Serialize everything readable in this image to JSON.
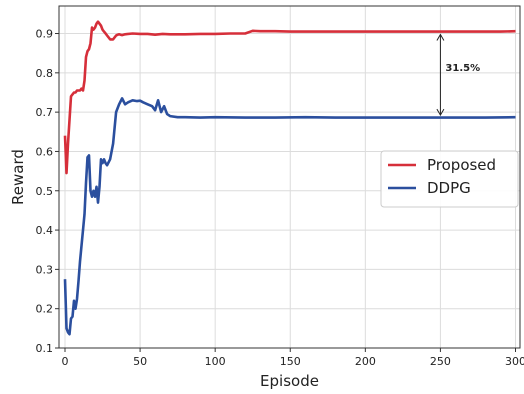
{
  "chart_data": {
    "type": "line",
    "title": "",
    "xlabel": "Episode",
    "ylabel": "Reward",
    "xlim": [
      -4,
      303
    ],
    "ylim": [
      0.1,
      0.97
    ],
    "xticks": [
      0,
      50,
      100,
      150,
      200,
      250,
      300
    ],
    "yticks": [
      0.1,
      0.2,
      0.3,
      0.4,
      0.5,
      0.6,
      0.7,
      0.8,
      0.9
    ],
    "grid": true,
    "legend_position": "center-right",
    "series": [
      {
        "name": "Proposed",
        "color": "#d62f3a",
        "x": [
          0,
          1,
          2,
          3,
          4,
          5,
          6,
          7,
          8,
          9,
          10,
          11,
          12,
          13,
          14,
          15,
          16,
          17,
          18,
          19,
          20,
          21,
          22,
          23,
          24,
          25,
          26,
          27,
          28,
          29,
          30,
          31,
          32,
          33,
          34,
          35,
          36,
          37,
          38,
          40,
          45,
          50,
          55,
          60,
          65,
          70,
          80,
          90,
          100,
          110,
          120,
          125,
          130,
          140,
          150,
          160,
          170,
          180,
          190,
          200,
          210,
          220,
          230,
          240,
          250,
          260,
          270,
          280,
          290,
          300
        ],
        "y": [
          0.64,
          0.545,
          0.62,
          0.68,
          0.74,
          0.745,
          0.75,
          0.75,
          0.755,
          0.755,
          0.755,
          0.76,
          0.755,
          0.78,
          0.84,
          0.855,
          0.86,
          0.875,
          0.915,
          0.91,
          0.915,
          0.925,
          0.93,
          0.925,
          0.92,
          0.91,
          0.905,
          0.9,
          0.895,
          0.89,
          0.885,
          0.885,
          0.885,
          0.89,
          0.895,
          0.897,
          0.898,
          0.897,
          0.896,
          0.898,
          0.9,
          0.899,
          0.899,
          0.897,
          0.899,
          0.898,
          0.898,
          0.899,
          0.899,
          0.9,
          0.9,
          0.907,
          0.906,
          0.906,
          0.905,
          0.905,
          0.905,
          0.905,
          0.905,
          0.905,
          0.905,
          0.905,
          0.905,
          0.905,
          0.905,
          0.905,
          0.905,
          0.905,
          0.905,
          0.906
        ]
      },
      {
        "name": "DDPG",
        "color": "#2b4f9e",
        "x": [
          0,
          1,
          2,
          3,
          4,
          5,
          6,
          7,
          8,
          9,
          10,
          11,
          12,
          13,
          14,
          15,
          16,
          17,
          18,
          19,
          20,
          21,
          22,
          23,
          24,
          25,
          26,
          27,
          28,
          30,
          32,
          34,
          36,
          38,
          40,
          42,
          45,
          48,
          50,
          52,
          55,
          58,
          60,
          62,
          64,
          66,
          68,
          70,
          75,
          80,
          90,
          100,
          120,
          140,
          160,
          180,
          200,
          220,
          240,
          260,
          280,
          300
        ],
        "y": [
          0.275,
          0.15,
          0.14,
          0.135,
          0.175,
          0.18,
          0.22,
          0.2,
          0.225,
          0.27,
          0.32,
          0.36,
          0.4,
          0.44,
          0.52,
          0.585,
          0.59,
          0.5,
          0.485,
          0.5,
          0.485,
          0.51,
          0.47,
          0.51,
          0.58,
          0.57,
          0.58,
          0.57,
          0.565,
          0.58,
          0.62,
          0.7,
          0.72,
          0.735,
          0.72,
          0.725,
          0.73,
          0.728,
          0.729,
          0.725,
          0.72,
          0.715,
          0.705,
          0.73,
          0.7,
          0.715,
          0.695,
          0.69,
          0.687,
          0.687,
          0.686,
          0.687,
          0.686,
          0.686,
          0.687,
          0.686,
          0.686,
          0.686,
          0.686,
          0.686,
          0.686,
          0.687
        ]
      }
    ],
    "annotation": {
      "text": "31.5%",
      "x": 250,
      "y_from": 0.69,
      "y_to": 0.9
    }
  }
}
